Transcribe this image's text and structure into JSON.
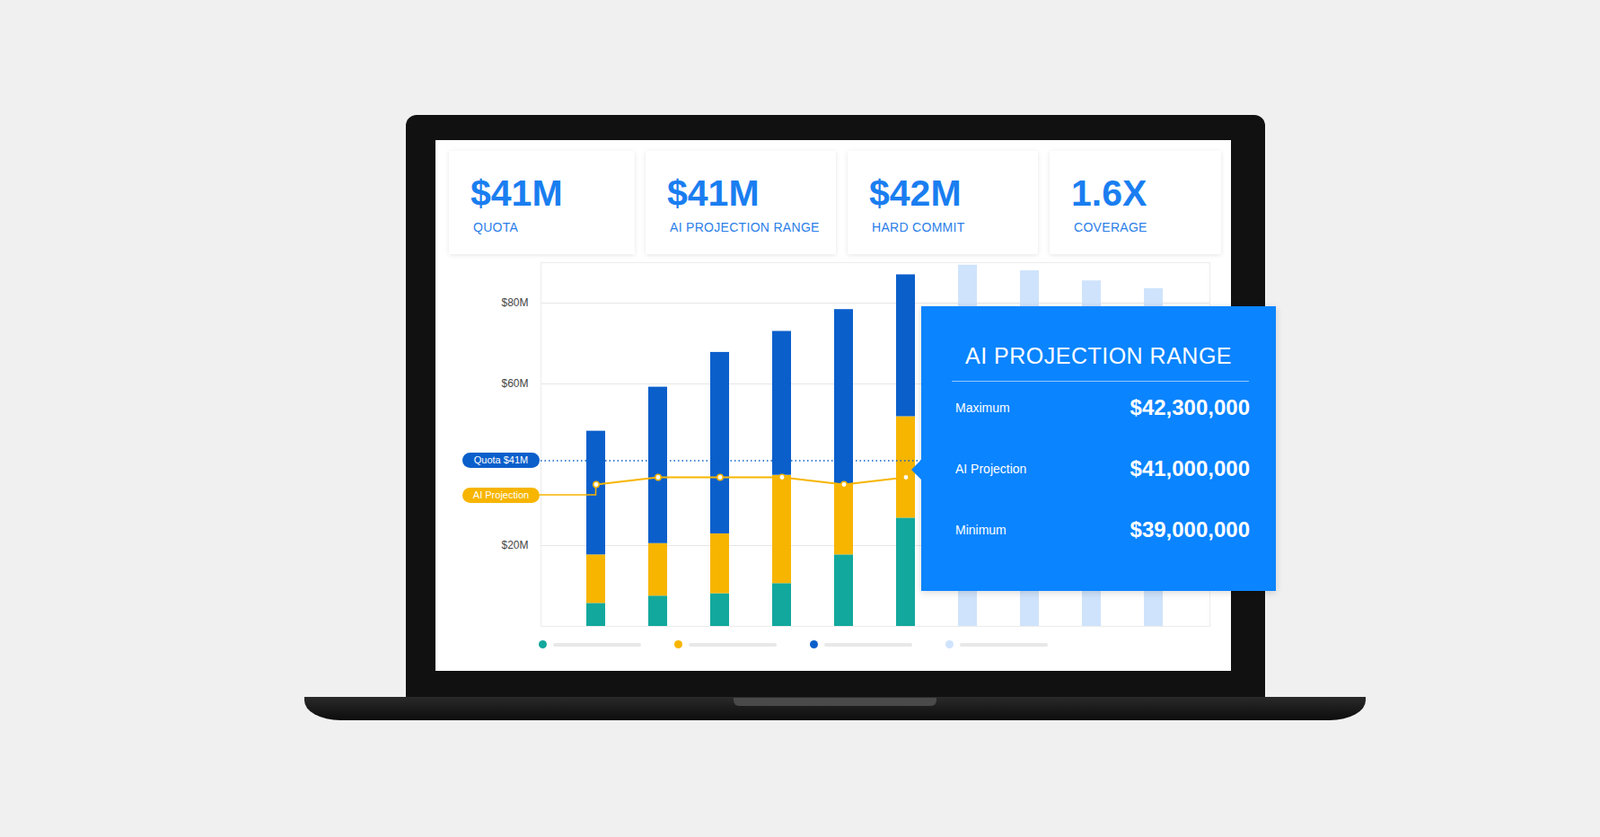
{
  "cards": [
    {
      "value": "$41M",
      "label": "QUOTA"
    },
    {
      "value": "$41M",
      "label": "AI PROJECTION RANGE"
    },
    {
      "value": "$42M",
      "label": "HARD COMMIT"
    },
    {
      "value": "1.6X",
      "label": "COVERAGE"
    }
  ],
  "chart_data": {
    "type": "bar",
    "stacked": true,
    "grid": true,
    "tick_labels": "y",
    "legend": "bottom",
    "categories": [
      null,
      null,
      null,
      null,
      null,
      null,
      null,
      null,
      null,
      null
    ],
    "ylim": [
      0,
      90
    ],
    "yticks": [
      {
        "value": 20,
        "label": "$20M"
      },
      {
        "value": 60,
        "label": "$60M"
      },
      {
        "value": 80,
        "label": "$80M"
      }
    ],
    "series": [
      {
        "color": "#12a89d",
        "values": [
          5.7,
          7.5,
          8.1,
          10.6,
          17.7,
          26.8,
          null,
          null,
          null,
          null
        ]
      },
      {
        "color": "#f7b500",
        "values": [
          12,
          13,
          14.8,
          26.8,
          17.6,
          25.1,
          null,
          null,
          null,
          null
        ]
      },
      {
        "color": "#0b5fcb",
        "values": [
          30.6,
          38.7,
          44.9,
          35.6,
          43.1,
          35.1,
          null,
          null,
          null,
          null
        ]
      },
      {
        "color": "#cfe3fc",
        "values": [
          null,
          null,
          null,
          null,
          null,
          null,
          89.4,
          88,
          85.5,
          83.6
        ]
      },
      {
        "name": "AI Projection",
        "type": "line",
        "color": "#f7b500",
        "marker": "circle",
        "values": [
          35.1,
          36.9,
          36.9,
          36.9,
          35.1,
          36.9,
          null,
          null,
          null,
          null
        ]
      }
    ],
    "reference_lines": [
      {
        "label": "Quota $41M",
        "value": 41,
        "color": "#0b5fcb",
        "line_style": "dotted"
      }
    ]
  },
  "tooltip": {
    "title": "AI PROJECTION RANGE",
    "rows": [
      {
        "label": "Maximum",
        "value": "$42,300,000"
      },
      {
        "label": "AI Projection",
        "value": "$41,000,000"
      },
      {
        "label": "Minimum",
        "value": "$39,000,000"
      }
    ]
  }
}
